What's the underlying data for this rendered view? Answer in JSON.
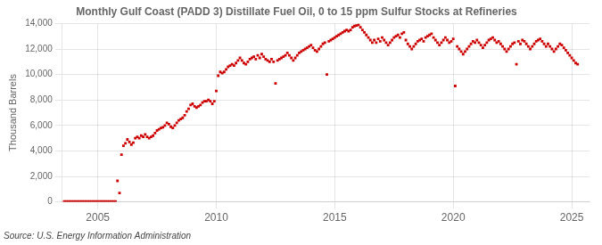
{
  "chart_data": {
    "type": "scatter",
    "title": "Monthly Gulf Coast (PADD 3) Distillate Fuel Oil, 0 to 15 ppm Sulfur Stocks at Refineries",
    "ylabel": "Thousand Barrels",
    "source": "Source: U.S. Energy Information Administration",
    "color": "#cc0000",
    "marker": "square",
    "grid": true,
    "xlim": [
      2003.5,
      2025.75
    ],
    "xticks": [
      2005,
      2010,
      2015,
      2020,
      2025
    ],
    "ylim": [
      0,
      14000
    ],
    "yticks": [
      0,
      {
        "value": 2000,
        "label": "2,000"
      },
      {
        "value": 4000,
        "label": "4,000"
      },
      {
        "value": 6000,
        "label": "6,000"
      },
      {
        "value": 8000,
        "label": "8,000"
      },
      {
        "value": 10000,
        "label": "10,000"
      },
      {
        "value": 12000,
        "label": "12,000"
      },
      {
        "value": 14000,
        "label": "14,000"
      }
    ],
    "x": [
      2003.583,
      2003.667,
      2003.75,
      2003.833,
      2003.917,
      2004.0,
      2004.083,
      2004.167,
      2004.25,
      2004.333,
      2004.417,
      2004.5,
      2004.583,
      2004.667,
      2004.75,
      2004.833,
      2004.917,
      2005.0,
      2005.083,
      2005.167,
      2005.25,
      2005.333,
      2005.417,
      2005.5,
      2005.583,
      2005.667,
      2005.75,
      2005.833,
      2005.917,
      2006.0,
      2006.083,
      2006.167,
      2006.25,
      2006.333,
      2006.417,
      2006.5,
      2006.583,
      2006.667,
      2006.75,
      2006.833,
      2006.917,
      2007.0,
      2007.083,
      2007.167,
      2007.25,
      2007.333,
      2007.417,
      2007.5,
      2007.583,
      2007.667,
      2007.75,
      2007.833,
      2007.917,
      2008.0,
      2008.083,
      2008.167,
      2008.25,
      2008.333,
      2008.417,
      2008.5,
      2008.583,
      2008.667,
      2008.75,
      2008.833,
      2008.917,
      2009.0,
      2009.083,
      2009.167,
      2009.25,
      2009.333,
      2009.417,
      2009.5,
      2009.583,
      2009.667,
      2009.75,
      2009.833,
      2009.917,
      2010.0,
      2010.083,
      2010.167,
      2010.25,
      2010.333,
      2010.417,
      2010.5,
      2010.583,
      2010.667,
      2010.75,
      2010.833,
      2010.917,
      2011.0,
      2011.083,
      2011.167,
      2011.25,
      2011.333,
      2011.417,
      2011.5,
      2011.583,
      2011.667,
      2011.75,
      2011.833,
      2011.917,
      2012.0,
      2012.083,
      2012.167,
      2012.25,
      2012.333,
      2012.417,
      2012.5,
      2012.583,
      2012.667,
      2012.75,
      2012.833,
      2012.917,
      2013.0,
      2013.083,
      2013.167,
      2013.25,
      2013.333,
      2013.417,
      2013.5,
      2013.583,
      2013.667,
      2013.75,
      2013.833,
      2013.917,
      2014.0,
      2014.083,
      2014.167,
      2014.25,
      2014.333,
      2014.417,
      2014.5,
      2014.583,
      2014.667,
      2014.75,
      2014.833,
      2014.917,
      2015.0,
      2015.083,
      2015.167,
      2015.25,
      2015.333,
      2015.417,
      2015.5,
      2015.583,
      2015.667,
      2015.75,
      2015.833,
      2015.917,
      2016.0,
      2016.083,
      2016.167,
      2016.25,
      2016.333,
      2016.417,
      2016.5,
      2016.583,
      2016.667,
      2016.75,
      2016.833,
      2016.917,
      2017.0,
      2017.083,
      2017.167,
      2017.25,
      2017.333,
      2017.417,
      2017.5,
      2017.583,
      2017.667,
      2017.75,
      2017.833,
      2017.917,
      2018.0,
      2018.083,
      2018.167,
      2018.25,
      2018.333,
      2018.417,
      2018.5,
      2018.583,
      2018.667,
      2018.75,
      2018.833,
      2018.917,
      2019.0,
      2019.083,
      2019.167,
      2019.25,
      2019.333,
      2019.417,
      2019.5,
      2019.583,
      2019.667,
      2019.75,
      2019.833,
      2019.917,
      2020.0,
      2020.083,
      2020.167,
      2020.25,
      2020.333,
      2020.417,
      2020.5,
      2020.583,
      2020.667,
      2020.75,
      2020.833,
      2020.917,
      2021.0,
      2021.083,
      2021.167,
      2021.25,
      2021.333,
      2021.417,
      2021.5,
      2021.583,
      2021.667,
      2021.75,
      2021.833,
      2021.917,
      2022.0,
      2022.083,
      2022.167,
      2022.25,
      2022.333,
      2022.417,
      2022.5,
      2022.583,
      2022.667,
      2022.75,
      2022.833,
      2022.917,
      2023.0,
      2023.083,
      2023.167,
      2023.25,
      2023.333,
      2023.417,
      2023.5,
      2023.583,
      2023.667,
      2023.75,
      2023.833,
      2023.917,
      2024.0,
      2024.083,
      2024.167,
      2024.25,
      2024.333,
      2024.417,
      2024.5,
      2024.583,
      2024.667,
      2024.75,
      2024.833,
      2024.917,
      2025.0,
      2025.083,
      2025.167,
      2025.25
    ],
    "values": [
      30,
      35,
      30,
      30,
      35,
      30,
      32,
      35,
      30,
      30,
      32,
      35,
      30,
      32,
      30,
      30,
      32,
      30,
      32,
      35,
      30,
      32,
      35,
      32,
      30,
      35,
      32,
      1650,
      700,
      3700,
      4400,
      4600,
      4900,
      4700,
      4500,
      4650,
      5000,
      5100,
      5000,
      5200,
      5100,
      5300,
      5100,
      5000,
      5100,
      5200,
      5400,
      5600,
      5700,
      5800,
      5850,
      6000,
      6200,
      6100,
      5900,
      5800,
      6000,
      6200,
      6400,
      6500,
      6600,
      6800,
      7100,
      7300,
      7600,
      7700,
      7500,
      7400,
      7500,
      7600,
      7800,
      7900,
      7900,
      8000,
      7900,
      7700,
      7900,
      8700,
      9900,
      10200,
      10100,
      10200,
      10400,
      10600,
      10700,
      10800,
      10700,
      10900,
      11100,
      11300,
      11100,
      10900,
      10800,
      11000,
      11200,
      11300,
      11400,
      11200,
      11500,
      11300,
      11600,
      11400,
      11200,
      11100,
      11000,
      11200,
      11000,
      9300,
      11100,
      11200,
      11300,
      11400,
      11500,
      11700,
      11500,
      11300,
      11100,
      11300,
      11500,
      11700,
      11800,
      11900,
      12000,
      12100,
      12200,
      12300,
      12100,
      11900,
      11800,
      12000,
      12200,
      12400,
      12500,
      10000,
      12600,
      12700,
      12800,
      12900,
      13000,
      13100,
      13200,
      13300,
      13400,
      13500,
      13400,
      13500,
      13700,
      13800,
      13850,
      13900,
      13700,
      13500,
      13300,
      13100,
      12900,
      12700,
      12500,
      12700,
      12500,
      12800,
      12600,
      12900,
      12700,
      12500,
      12300,
      12500,
      12700,
      12900,
      13000,
      13100,
      12900,
      13200,
      13300,
      12700,
      12400,
      12200,
      12000,
      12200,
      12400,
      12600,
      12700,
      12800,
      12600,
      12900,
      13000,
      13100,
      13200,
      12900,
      12700,
      12500,
      12300,
      12500,
      12700,
      12900,
      12700,
      12500,
      12600,
      12800,
      9100,
      12200,
      12000,
      11800,
      11600,
      11800,
      12000,
      12200,
      12400,
      12600,
      12500,
      12700,
      12500,
      12300,
      12100,
      12300,
      12500,
      12700,
      12800,
      12900,
      12700,
      12500,
      12600,
      12400,
      12200,
      12000,
      11800,
      12000,
      12200,
      12400,
      12500,
      10800,
      12600,
      12400,
      12700,
      12600,
      12400,
      12200,
      12000,
      12200,
      12400,
      12600,
      12700,
      12800,
      12600,
      12400,
      12200,
      12400,
      12200,
      12000,
      11800,
      12000,
      12200,
      12400,
      12300,
      12100,
      11900,
      11700,
      11500,
      11300,
      11100,
      10900,
      10800
    ]
  }
}
